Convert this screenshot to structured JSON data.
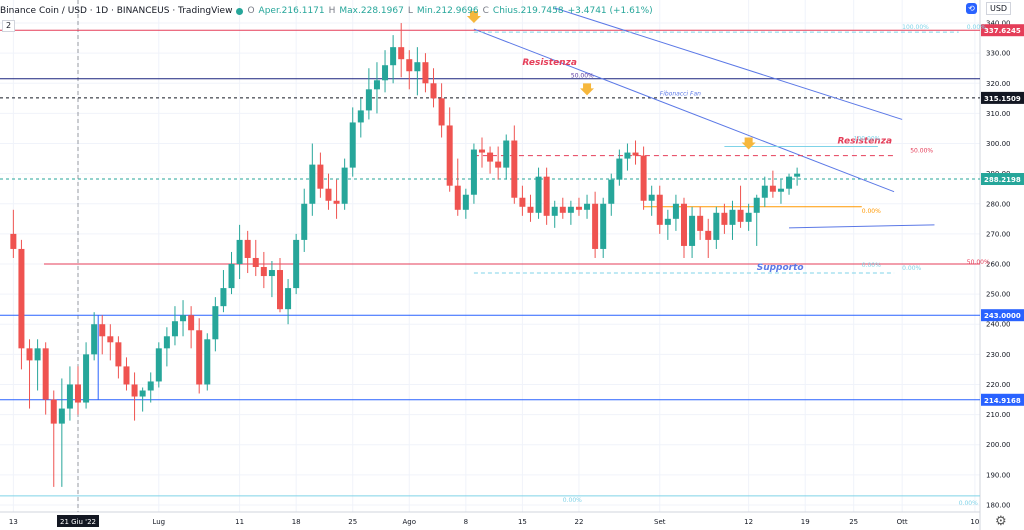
{
  "header": {
    "symbol": "Binance Coin / USD · 1D · BINANCEUS · TradingView",
    "open_label": "O",
    "open": "Aper.216.1171",
    "high_label": "H",
    "high": "Max.228.1967",
    "low_label": "L",
    "low": "Min.212.9696",
    "close_label": "C",
    "close": "Chius.219.7458",
    "change": "+3.4741 (+1.61%)",
    "indicator_badge": "2",
    "currency": "USD"
  },
  "colors": {
    "bull": "#26a69a",
    "bear": "#ef5350",
    "resistance": "#e53e59",
    "support_line": "#2962ff",
    "fib_fan": "#5b78e6",
    "fib_level": "#7fd3e8",
    "arrow": "#f6b73c",
    "orange_line": "#ff9800"
  },
  "chart_data": {
    "type": "candlestick",
    "title": "Binance Coin / USD · 1D · BINANCEUS · TradingView",
    "ylim": [
      175,
      345
    ],
    "y_ticks": [
      180,
      190,
      200,
      210,
      220,
      230,
      240,
      250,
      260,
      270,
      280,
      290,
      300,
      310,
      320,
      330,
      340
    ],
    "x_ticks": [
      {
        "label": "13",
        "day": -8
      },
      {
        "label": "21 Giu '22",
        "day": 0,
        "highlight": true
      },
      {
        "label": "Lug",
        "day": 10
      },
      {
        "label": "11",
        "day": 20
      },
      {
        "label": "18",
        "day": 27
      },
      {
        "label": "25",
        "day": 34
      },
      {
        "label": "Ago",
        "day": 41
      },
      {
        "label": "8",
        "day": 48
      },
      {
        "label": "15",
        "day": 55
      },
      {
        "label": "22",
        "day": 62
      },
      {
        "label": "Set",
        "day": 72
      },
      {
        "label": "12",
        "day": 83
      },
      {
        "label": "19",
        "day": 90
      },
      {
        "label": "25",
        "day": 96
      },
      {
        "label": "Ott",
        "day": 102
      },
      {
        "label": "10",
        "day": 111
      }
    ],
    "candles": [
      [
        270,
        278,
        262,
        265
      ],
      [
        265,
        268,
        225,
        232
      ],
      [
        232,
        235,
        212,
        228
      ],
      [
        228,
        235,
        218,
        232
      ],
      [
        232,
        234,
        210,
        215
      ],
      [
        215,
        218,
        186,
        207
      ],
      [
        207,
        222,
        186,
        212
      ],
      [
        212,
        226,
        208,
        220
      ],
      [
        220,
        226,
        210,
        214
      ],
      [
        214,
        234,
        212,
        230
      ],
      [
        230,
        244,
        228,
        240
      ],
      [
        240,
        243,
        230,
        236
      ],
      [
        236,
        240,
        228,
        234
      ],
      [
        234,
        236,
        222,
        226
      ],
      [
        226,
        229,
        218,
        220
      ],
      [
        220,
        224,
        208,
        216
      ],
      [
        216,
        219,
        211,
        218
      ],
      [
        218,
        224,
        214,
        221
      ],
      [
        221,
        234,
        219,
        232
      ],
      [
        232,
        239,
        226,
        236
      ],
      [
        236,
        246,
        233,
        241
      ],
      [
        241,
        248,
        236,
        243
      ],
      [
        243,
        246,
        232,
        238
      ],
      [
        238,
        242,
        217,
        220
      ],
      [
        220,
        237,
        218,
        235
      ],
      [
        235,
        249,
        231,
        246
      ],
      [
        246,
        258,
        244,
        252
      ],
      [
        252,
        264,
        250,
        260
      ],
      [
        260,
        273,
        255,
        268
      ],
      [
        268,
        271,
        257,
        262
      ],
      [
        262,
        268,
        256,
        259
      ],
      [
        259,
        264,
        252,
        256
      ],
      [
        256,
        261,
        249,
        258
      ],
      [
        258,
        262,
        244,
        245
      ],
      [
        245,
        255,
        240,
        252
      ],
      [
        252,
        270,
        250,
        268
      ],
      [
        268,
        285,
        264,
        280
      ],
      [
        280,
        300,
        276,
        293
      ],
      [
        293,
        297,
        282,
        285
      ],
      [
        285,
        290,
        278,
        281
      ],
      [
        281,
        288,
        275,
        280
      ],
      [
        280,
        295,
        278,
        292
      ],
      [
        292,
        312,
        289,
        307
      ],
      [
        307,
        315,
        302,
        311
      ],
      [
        311,
        325,
        308,
        318
      ],
      [
        318,
        327,
        310,
        321
      ],
      [
        321,
        331,
        317,
        326
      ],
      [
        326,
        336,
        320,
        332
      ],
      [
        332,
        340,
        322,
        328
      ],
      [
        328,
        331,
        318,
        324
      ],
      [
        324,
        332,
        316,
        327
      ],
      [
        327,
        330,
        317,
        320
      ],
      [
        320,
        325,
        312,
        315
      ],
      [
        315,
        320,
        302,
        306
      ],
      [
        306,
        312,
        284,
        286
      ],
      [
        286,
        295,
        276,
        278
      ],
      [
        278,
        285,
        275,
        283
      ],
      [
        283,
        300,
        280,
        298
      ],
      [
        298,
        302,
        292,
        297
      ],
      [
        297,
        299,
        290,
        294
      ],
      [
        294,
        299,
        288,
        292
      ],
      [
        292,
        303,
        288,
        301
      ],
      [
        301,
        306,
        280,
        282
      ],
      [
        282,
        286,
        276,
        279
      ],
      [
        279,
        283,
        274,
        277
      ],
      [
        277,
        292,
        275,
        289
      ],
      [
        289,
        292,
        273,
        276
      ],
      [
        276,
        281,
        272,
        279
      ],
      [
        279,
        282,
        275,
        277
      ],
      [
        277,
        281,
        273,
        279
      ],
      [
        279,
        282,
        276,
        278
      ],
      [
        278,
        283,
        275,
        280
      ],
      [
        280,
        284,
        262,
        265
      ],
      [
        265,
        282,
        262,
        280
      ],
      [
        280,
        290,
        276,
        288
      ],
      [
        288,
        298,
        286,
        295
      ],
      [
        295,
        300,
        291,
        297
      ],
      [
        297,
        301,
        293,
        296
      ],
      [
        296,
        299,
        278,
        281
      ],
      [
        281,
        286,
        276,
        283
      ],
      [
        283,
        286,
        270,
        273
      ],
      [
        273,
        278,
        268,
        275
      ],
      [
        275,
        283,
        271,
        280
      ],
      [
        280,
        282,
        262,
        266
      ],
      [
        266,
        279,
        262,
        276
      ],
      [
        276,
        279,
        268,
        271
      ],
      [
        271,
        275,
        262,
        268
      ],
      [
        268,
        279,
        265,
        277
      ],
      [
        277,
        280,
        270,
        273
      ],
      [
        273,
        281,
        268,
        278
      ],
      [
        278,
        286,
        272,
        274
      ],
      [
        274,
        280,
        271,
        277
      ],
      [
        277,
        283,
        266,
        282
      ],
      [
        282,
        289,
        279,
        286
      ],
      [
        286,
        291,
        282,
        284
      ],
      [
        284,
        288,
        280,
        285
      ],
      [
        285,
        290,
        283,
        289
      ],
      [
        289,
        292,
        286,
        290
      ]
    ],
    "hlines": [
      {
        "price": 337.6245,
        "label": "337.6245",
        "color": "#e53e59"
      },
      {
        "price": 315.1509,
        "label": "315.1509",
        "color": "#131722",
        "dashed": true
      },
      {
        "price": 288.2198,
        "label": "288.2198",
        "color": "#26a69a",
        "dashed": true
      },
      {
        "price": 243.0,
        "label": "243.0000",
        "color": "#2962ff"
      },
      {
        "price": 214.9168,
        "label": "214.9168",
        "color": "#2962ff"
      }
    ],
    "annotations": [
      {
        "text": "Resistenza",
        "x": 55,
        "y": 326,
        "color": "#e53e59"
      },
      {
        "text": "Resistenza",
        "x": 94,
        "y": 300,
        "color": "#e53e59"
      },
      {
        "text": "Supporto",
        "x": 84,
        "y": 258,
        "color": "#5b78e6"
      },
      {
        "text": "Fibonacci Fan",
        "x": 72,
        "y": 316,
        "color": "#5b78e6"
      }
    ],
    "fib_labels": [
      {
        "text": "50.00%",
        "x": 61,
        "y": 322,
        "color": "#5b3ca3"
      },
      {
        "text": "50.00%",
        "x": 103,
        "y": 297,
        "color": "#e53e59"
      },
      {
        "text": "50.00%",
        "x": 110,
        "y": 260,
        "color": "#e53e59"
      },
      {
        "text": "0.00%",
        "x": 110,
        "y": 338,
        "color": "#7fd3e8"
      },
      {
        "text": "100.00%",
        "x": 102,
        "y": 338,
        "color": "#7fd3e8"
      },
      {
        "text": "100.00%",
        "x": 96,
        "y": 301,
        "color": "#7fd3e8"
      },
      {
        "text": "0.00%",
        "x": 60,
        "y": 181,
        "color": "#7fd3e8"
      },
      {
        "text": "0.00%",
        "x": 109,
        "y": 180,
        "color": "#7fd3e8"
      },
      {
        "text": "0.00%",
        "x": 97,
        "y": 277,
        "color": "#ff9800"
      },
      {
        "text": "0.00%",
        "x": 97,
        "y": 259,
        "color": "#7fd3e8"
      },
      {
        "text": "0.00%",
        "x": 102,
        "y": 258,
        "color": "#7fd3e8"
      }
    ]
  }
}
